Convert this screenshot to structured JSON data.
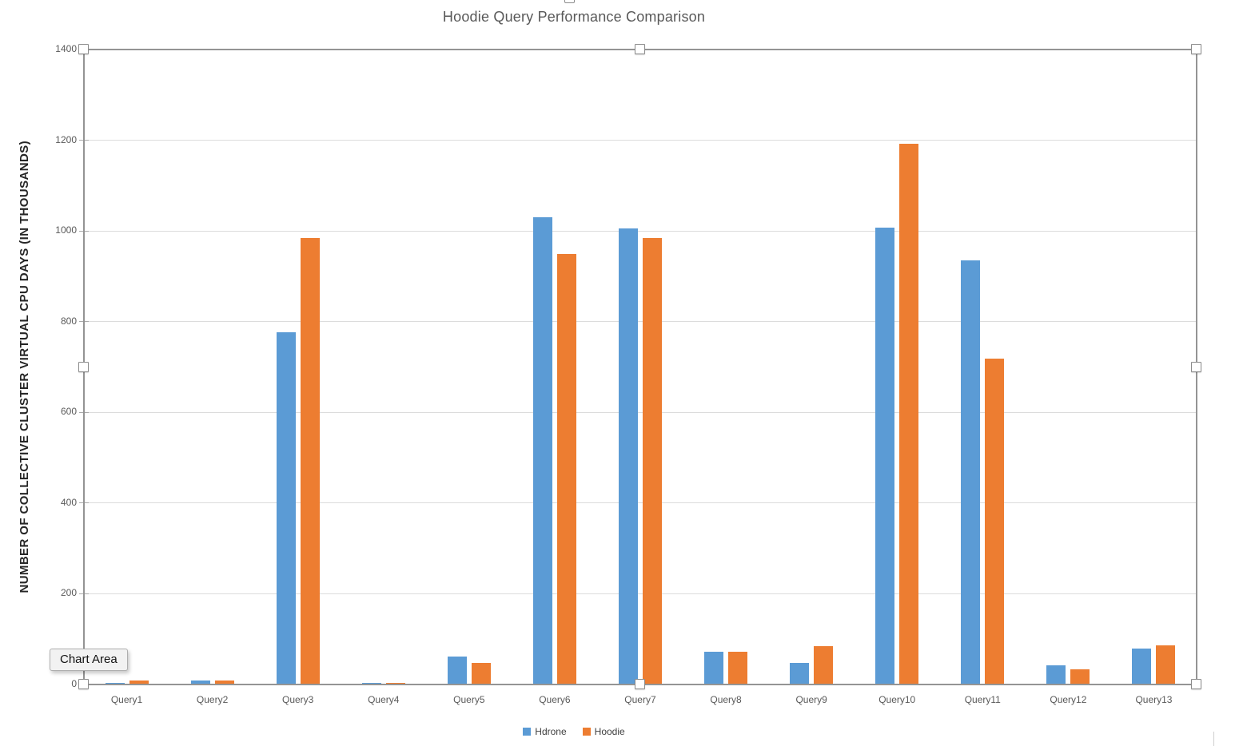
{
  "chart_data": {
    "type": "bar",
    "title": "Hoodie Query Performance Comparison",
    "xlabel": "",
    "ylabel": "NUMBER OF COLLECTIVE CLUSTER VIRTUAL CPU DAYS (IN THOUSANDS)",
    "categories": [
      "Query1",
      "Query2",
      "Query3",
      "Query4",
      "Query5",
      "Query6",
      "Query7",
      "Query8",
      "Query9",
      "Query10",
      "Query11",
      "Query12",
      "Query13"
    ],
    "series": [
      {
        "name": "Hdrone",
        "color": "#5B9BD5",
        "values": [
          4,
          8,
          776,
          4,
          62,
          1030,
          1005,
          72,
          47,
          1008,
          935,
          42,
          80
        ]
      },
      {
        "name": "Hoodie",
        "color": "#ED7D31",
        "values": [
          8,
          8,
          985,
          4,
          48,
          950,
          985,
          73,
          85,
          1193,
          718,
          33,
          87
        ]
      }
    ],
    "ylim": [
      0,
      1400
    ],
    "ytick_step": 200,
    "grid": true,
    "legend_position": "bottom"
  },
  "selection": {
    "tooltip": "Chart Area"
  },
  "colors": {
    "series_blue": "#5B9BD5",
    "series_orange": "#ED7D31",
    "gridline": "#DCDCDC",
    "axis_line": "#949494",
    "tick_text": "#595959",
    "title_text": "#595959"
  }
}
